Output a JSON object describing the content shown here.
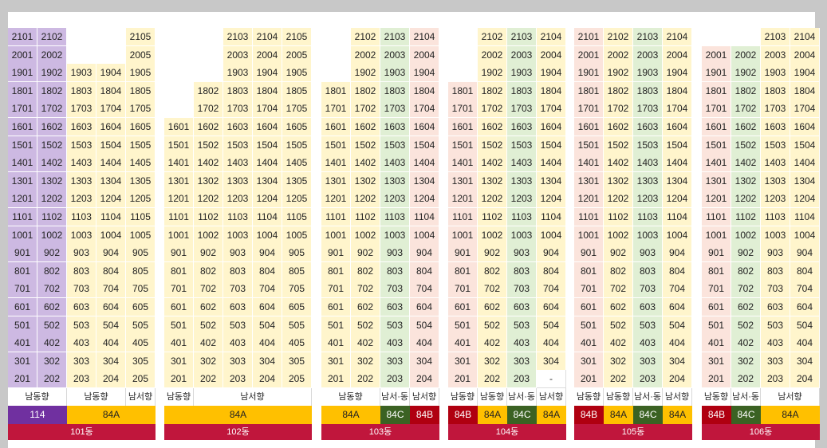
{
  "colors": {
    "yellow": "#fff5cc",
    "green": "#e0efd4",
    "pink": "#fbe4dc",
    "violet": "#cdb9e2",
    "type_yellow": "#ffc000",
    "type_green": "#3b6223",
    "type_red": "#b00010",
    "type_purple": "#7030a0",
    "building_bar": "#c0163c"
  },
  "buildings": [
    {
      "name": "101동",
      "top_floor": 21,
      "columns": [
        {
          "unit": "01",
          "max_floor": 21,
          "color": "violet"
        },
        {
          "unit": "02",
          "max_floor": 21,
          "color": "violet"
        },
        {
          "unit": "03",
          "max_floor": 19,
          "color": "yellow"
        },
        {
          "unit": "04",
          "max_floor": 19,
          "color": "yellow"
        },
        {
          "unit": "05",
          "max_floor": 21,
          "color": "yellow"
        }
      ],
      "directions": [
        {
          "label": "남동향",
          "span": 2
        },
        {
          "label": "남동향",
          "span": 2
        },
        {
          "label": "남서향",
          "span": 1
        }
      ],
      "types": [
        {
          "label": "114",
          "span": 2,
          "color": "purple"
        },
        {
          "label": "84A",
          "span": 3,
          "color": "yellow"
        }
      ]
    },
    {
      "name": "102동",
      "top_floor": 21,
      "columns": [
        {
          "unit": "01",
          "max_floor": 16,
          "color": "yellow"
        },
        {
          "unit": "02",
          "max_floor": 18,
          "color": "yellow"
        },
        {
          "unit": "03",
          "max_floor": 21,
          "color": "yellow"
        },
        {
          "unit": "04",
          "max_floor": 21,
          "color": "yellow"
        },
        {
          "unit": "05",
          "max_floor": 21,
          "color": "yellow"
        }
      ],
      "directions": [
        {
          "label": "남동향",
          "span": 1
        },
        {
          "label": "남서향",
          "span": 4
        }
      ],
      "types": [
        {
          "label": "84A",
          "span": 5,
          "color": "yellow"
        }
      ]
    },
    {
      "name": "103동",
      "top_floor": 21,
      "columns": [
        {
          "unit": "01",
          "max_floor": 18,
          "color": "yellow"
        },
        {
          "unit": "02",
          "max_floor": 21,
          "color": "yellow"
        },
        {
          "unit": "03",
          "max_floor": 21,
          "color": "green"
        },
        {
          "unit": "04",
          "max_floor": 21,
          "color": "pink"
        }
      ],
      "directions": [
        {
          "label": "남동향",
          "span": 2
        },
        {
          "label": "남서·동",
          "span": 1
        },
        {
          "label": "남서향",
          "span": 1
        }
      ],
      "types": [
        {
          "label": "84A",
          "span": 2,
          "color": "yellow"
        },
        {
          "label": "84C",
          "span": 1,
          "color": "green"
        },
        {
          "label": "84B",
          "span": 1,
          "color": "red"
        }
      ]
    },
    {
      "name": "104동",
      "top_floor": 21,
      "columns": [
        {
          "unit": "01",
          "max_floor": 18,
          "color": "pink"
        },
        {
          "unit": "02",
          "max_floor": 21,
          "color": "yellow"
        },
        {
          "unit": "03",
          "max_floor": 21,
          "color": "green"
        },
        {
          "unit": "04",
          "max_floor": 21,
          "color": "yellow",
          "blank_floors": [
            2
          ],
          "blank_text": "-"
        }
      ],
      "directions": [
        {
          "label": "남동향",
          "span": 1
        },
        {
          "label": "남동향",
          "span": 1
        },
        {
          "label": "남서·동",
          "span": 1
        },
        {
          "label": "남서향",
          "span": 1
        }
      ],
      "types": [
        {
          "label": "84B",
          "span": 1,
          "color": "red"
        },
        {
          "label": "84A",
          "span": 1,
          "color": "yellow"
        },
        {
          "label": "84C",
          "span": 1,
          "color": "green"
        },
        {
          "label": "84A",
          "span": 1,
          "color": "yellow"
        }
      ]
    },
    {
      "name": "105동",
      "top_floor": 21,
      "columns": [
        {
          "unit": "01",
          "max_floor": 21,
          "color": "pink"
        },
        {
          "unit": "02",
          "max_floor": 21,
          "color": "yellow"
        },
        {
          "unit": "03",
          "max_floor": 21,
          "color": "green"
        },
        {
          "unit": "04",
          "max_floor": 21,
          "color": "yellow"
        }
      ],
      "directions": [
        {
          "label": "남동향",
          "span": 1
        },
        {
          "label": "남동향",
          "span": 1
        },
        {
          "label": "남서·동",
          "span": 1
        },
        {
          "label": "남서향",
          "span": 1
        }
      ],
      "types": [
        {
          "label": "84B",
          "span": 1,
          "color": "red"
        },
        {
          "label": "84A",
          "span": 1,
          "color": "yellow"
        },
        {
          "label": "84C",
          "span": 1,
          "color": "green"
        },
        {
          "label": "84A",
          "span": 1,
          "color": "yellow"
        }
      ]
    },
    {
      "name": "106동",
      "top_floor": 21,
      "columns": [
        {
          "unit": "01",
          "max_floor": 20,
          "color": "pink"
        },
        {
          "unit": "02",
          "max_floor": 20,
          "color": "green"
        },
        {
          "unit": "03",
          "max_floor": 21,
          "color": "yellow"
        },
        {
          "unit": "04",
          "max_floor": 21,
          "color": "yellow"
        }
      ],
      "directions": [
        {
          "label": "남동향",
          "span": 1
        },
        {
          "label": "남서·동",
          "span": 1
        },
        {
          "label": "남서향",
          "span": 2
        }
      ],
      "types": [
        {
          "label": "84B",
          "span": 1,
          "color": "red"
        },
        {
          "label": "84C",
          "span": 1,
          "color": "green"
        },
        {
          "label": "84A",
          "span": 2,
          "color": "yellow"
        }
      ]
    }
  ]
}
